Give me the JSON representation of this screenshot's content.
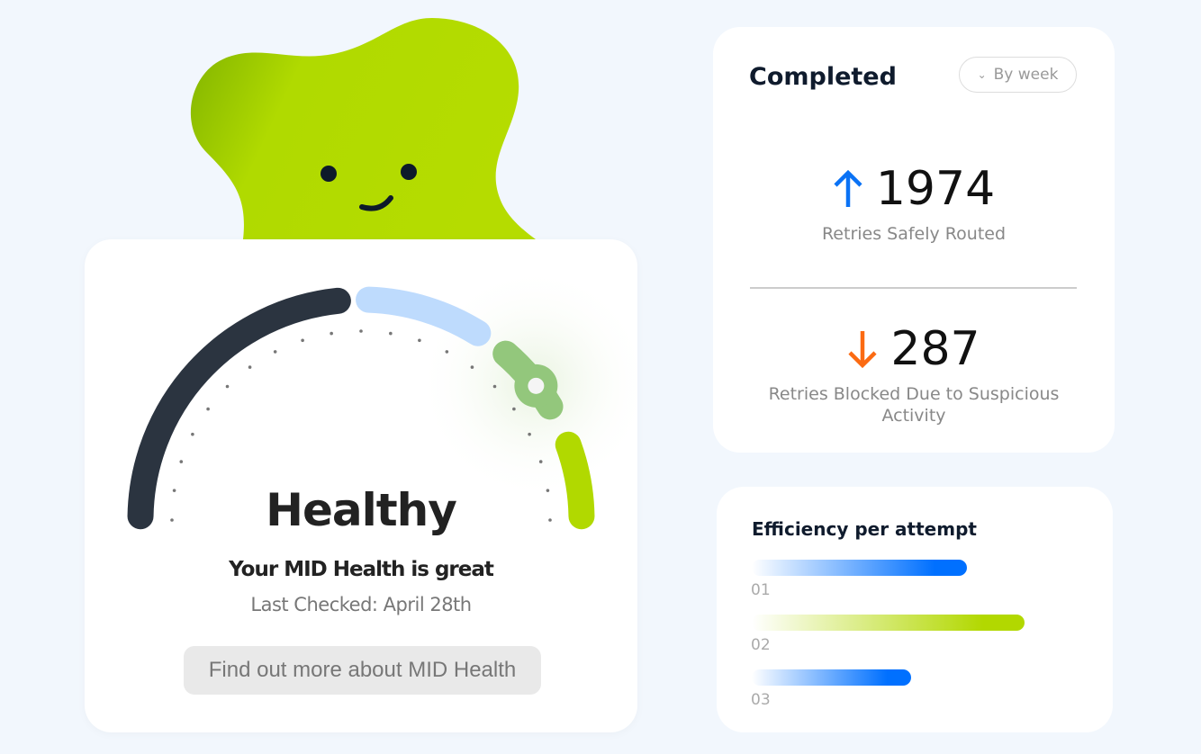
{
  "health": {
    "status": "Healthy",
    "subtitle": "Your MID Health is great",
    "last_checked": "Last Checked: April 28th",
    "button": "Find out more about MID Health"
  },
  "completed": {
    "title": "Completed",
    "filter": "By week",
    "routed": {
      "value": "1974",
      "label": "Retries Safely Routed",
      "icon": "arrow-up-icon",
      "color": "#0a72f5"
    },
    "blocked": {
      "value": "287",
      "label": "Retries Blocked Due to Suspicious Activity",
      "icon": "arrow-down-icon",
      "color": "#fb6a12"
    }
  },
  "efficiency": {
    "title": "Efficiency per attempt",
    "bars": [
      {
        "label": "01",
        "fraction": 0.78,
        "color": "#0070ff"
      },
      {
        "label": "02",
        "fraction": 0.99,
        "color": "#b2d800"
      },
      {
        "label": "03",
        "fraction": 0.58,
        "color": "#0070ff"
      }
    ]
  },
  "colors": {
    "dark": "#2b3440",
    "light_blue": "#bedbfd",
    "green": "#93c77c",
    "lime": "#b1d900"
  }
}
